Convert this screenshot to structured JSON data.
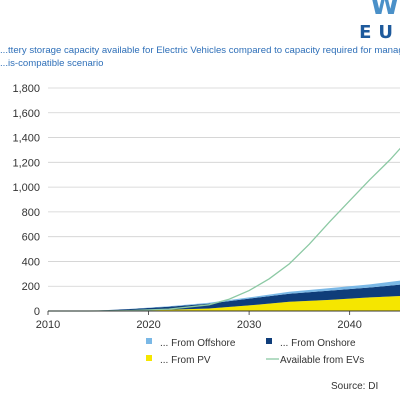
{
  "logo": {
    "top": "W",
    "bottom": "EU"
  },
  "title": {
    "line1": "...ttery storage capacity available for Electric Vehicles compared to capacity required for managing",
    "line2": "...is-compatible scenario"
  },
  "source": "Source: DI",
  "colors": {
    "offshore": "#7ab8e6",
    "onshore": "#0f3d7a",
    "pv": "#f5e600",
    "evs": "#8cc9a4",
    "grid": "#d0d0d0",
    "axis": "#333333"
  },
  "chart_data": {
    "type": "area",
    "xlim": [
      2010,
      2046
    ],
    "ylim": [
      0,
      1800
    ],
    "x_ticks": [
      2010,
      2020,
      2030,
      2040
    ],
    "y_ticks": [
      0,
      200,
      400,
      600,
      800,
      1000,
      1200,
      1400,
      1600,
      1800
    ],
    "y_tick_labels": [
      "0",
      "200",
      "400",
      "600",
      "800",
      "1,000",
      "1,200",
      "1,400",
      "1,600",
      "1,800"
    ],
    "grid": "horizontal",
    "legend_placement": "bottom",
    "stack_order": [
      "From PV",
      "From Onshore",
      "From Offshore"
    ],
    "x": [
      2010,
      2014,
      2018,
      2022,
      2026,
      2030,
      2034,
      2038,
      2042,
      2046
    ],
    "series": [
      {
        "name": "From PV",
        "legend": "... From PV",
        "kind": "area",
        "color_key": "pv",
        "values": [
          0,
          0,
          5,
          10,
          20,
          45,
          75,
          90,
          110,
          125
        ]
      },
      {
        "name": "From Onshore",
        "legend": "... From Onshore",
        "kind": "area",
        "color_key": "onshore",
        "values": [
          0,
          0,
          10,
          25,
          40,
          55,
          65,
          75,
          80,
          95
        ]
      },
      {
        "name": "From Offshore",
        "legend": "... From Offshore",
        "kind": "area",
        "color_key": "offshore",
        "values": [
          0,
          0,
          1,
          3,
          6,
          10,
          15,
          20,
          25,
          35
        ]
      },
      {
        "name": "Available from EVs",
        "legend": "Available from EVs",
        "kind": "line",
        "color_key": "evs",
        "x": [
          2010,
          2014,
          2018,
          2022,
          2026,
          2028,
          2030,
          2032,
          2034,
          2036,
          2038,
          2040,
          2042,
          2044,
          2046
        ],
        "values": [
          0,
          0,
          3,
          15,
          50,
          95,
          165,
          260,
          380,
          540,
          720,
          890,
          1060,
          1220,
          1400
        ]
      }
    ]
  }
}
